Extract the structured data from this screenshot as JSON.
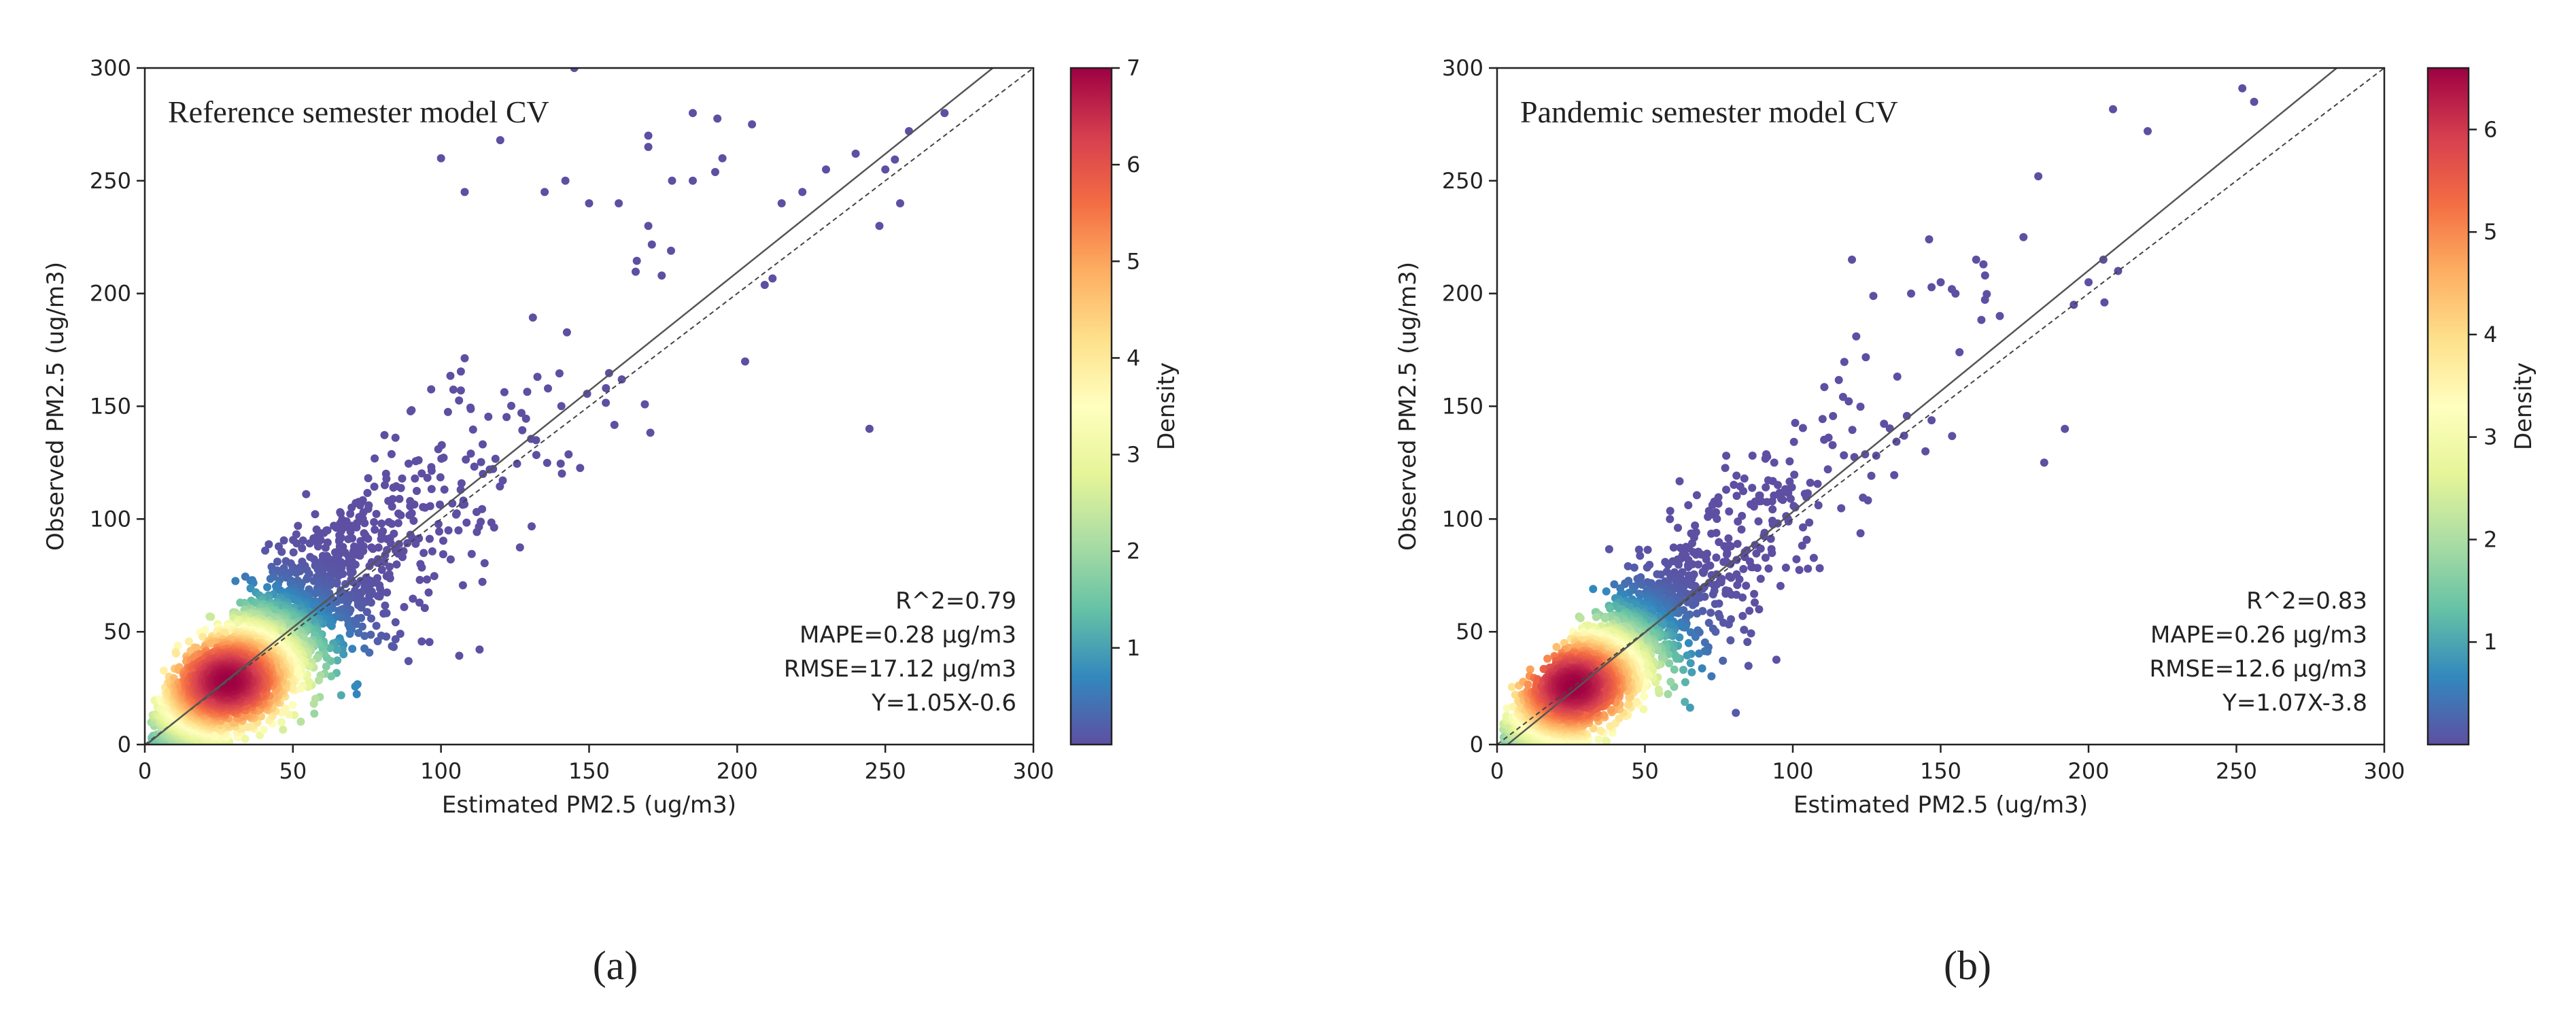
{
  "chart_data": [
    {
      "type": "scatter",
      "panel_label": "(a)",
      "title": "Reference semester model CV",
      "xlabel": "Estimated PM2.5 (ug/m3)",
      "ylabel": "Observed PM2.5 (ug/m3)",
      "xlim": [
        0,
        300
      ],
      "ylim": [
        0,
        300
      ],
      "xticks": [
        "0",
        "50",
        "100",
        "150",
        "200",
        "250",
        "300"
      ],
      "yticks": [
        "0",
        "50",
        "100",
        "150",
        "200",
        "250",
        "300"
      ],
      "fit": {
        "slope": 1.05,
        "intercept": -0.6
      },
      "one_to_one_line": true,
      "stats": {
        "r2": "R^2=0.79",
        "mape": "MAPE=0.28 μg/m3",
        "rmse": "RMSE=17.12 μg/m3",
        "equation": "Y=1.05X-0.6"
      },
      "colorbar": {
        "label": "Density",
        "min": 0,
        "max": 7,
        "ticks": [
          "1",
          "2",
          "3",
          "4",
          "5",
          "6",
          "7"
        ]
      },
      "density_center": [
        28,
        28
      ],
      "spread": 17.12,
      "outliers": [
        [
          145,
          300
        ],
        [
          258,
          272
        ],
        [
          270,
          280
        ],
        [
          205,
          275
        ],
        [
          120,
          268
        ],
        [
          170,
          270
        ],
        [
          185,
          280
        ],
        [
          178,
          250
        ],
        [
          150,
          240
        ],
        [
          135,
          245
        ],
        [
          240,
          262
        ],
        [
          255,
          240
        ],
        [
          230,
          255
        ],
        [
          222,
          245
        ],
        [
          215,
          240
        ],
        [
          185,
          250
        ],
        [
          195,
          260
        ],
        [
          170,
          230
        ],
        [
          160,
          240
        ],
        [
          100,
          260
        ],
        [
          108,
          245
        ],
        [
          142,
          250
        ],
        [
          170,
          265
        ],
        [
          248,
          230
        ],
        [
          250,
          255
        ]
      ]
    },
    {
      "type": "scatter",
      "panel_label": "(b)",
      "title": "Pandemic semester model CV",
      "xlabel": "Estimated PM2.5 (ug/m3)",
      "ylabel": "Observed PM2.5 (ug/m3)",
      "xlim": [
        0,
        300
      ],
      "ylim": [
        0,
        300
      ],
      "xticks": [
        "0",
        "50",
        "100",
        "150",
        "200",
        "250",
        "300"
      ],
      "yticks": [
        "0",
        "50",
        "100",
        "150",
        "200",
        "250",
        "300"
      ],
      "fit": {
        "slope": 1.07,
        "intercept": -3.8
      },
      "one_to_one_line": true,
      "stats": {
        "r2": "R^2=0.83",
        "mape": "MAPE=0.26 μg/m3",
        "rmse": "RMSE=12.6 μg/m3",
        "equation": "Y=1.07X-3.8"
      },
      "colorbar": {
        "label": "Density",
        "min": 0,
        "max": 6.6,
        "ticks": [
          "1",
          "2",
          "3",
          "4",
          "5",
          "6"
        ]
      },
      "density_center": [
        26,
        26
      ],
      "spread": 12.6,
      "outliers": [
        [
          252,
          291
        ],
        [
          256,
          285
        ],
        [
          220,
          272
        ],
        [
          183,
          252
        ],
        [
          200,
          205
        ],
        [
          205,
          215
        ],
        [
          192,
          140
        ],
        [
          185,
          125
        ],
        [
          162,
          215
        ],
        [
          165,
          208
        ],
        [
          155,
          200
        ],
        [
          150,
          205
        ],
        [
          140,
          200
        ],
        [
          120,
          215
        ],
        [
          178,
          225
        ],
        [
          170,
          190
        ],
        [
          195,
          195
        ],
        [
          210,
          210
        ]
      ]
    }
  ]
}
